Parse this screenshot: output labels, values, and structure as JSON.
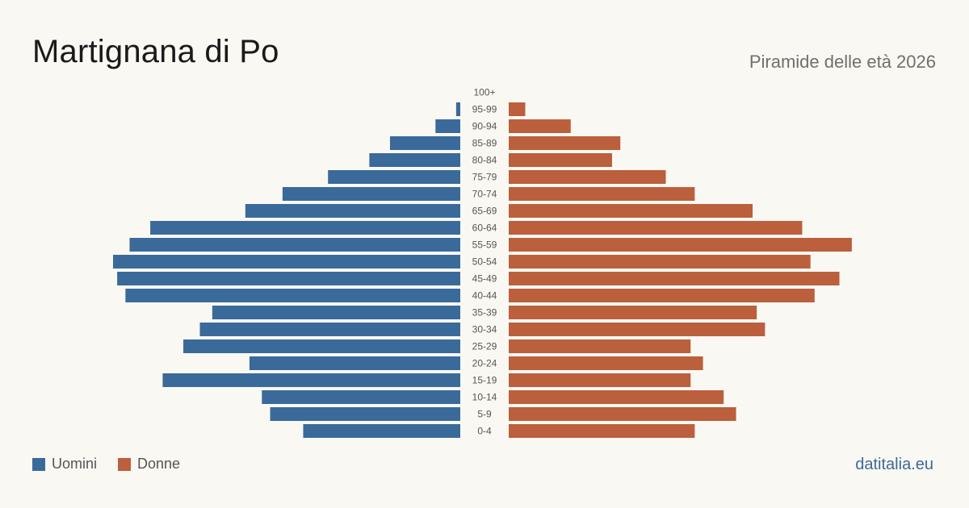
{
  "header": {
    "title": "Martignana di Po",
    "subtitle": "Piramide delle età 2026"
  },
  "legend": {
    "men_label": "Uomini",
    "women_label": "Donne"
  },
  "footer": {
    "brand": "datitalia.eu"
  },
  "colors": {
    "men": "#3a6a9a",
    "women": "#bb5f3d"
  },
  "chart_data": {
    "type": "bar",
    "orientation": "horizontal-pyramid",
    "categories": [
      "100+",
      "95-99",
      "90-94",
      "85-89",
      "80-84",
      "75-79",
      "70-74",
      "65-69",
      "60-64",
      "55-59",
      "50-54",
      "45-49",
      "40-44",
      "35-39",
      "30-34",
      "25-29",
      "20-24",
      "15-19",
      "10-14",
      "5-9",
      "0-4"
    ],
    "series": [
      {
        "name": "Uomini",
        "values": [
          0,
          1,
          6,
          17,
          22,
          32,
          43,
          52,
          75,
          80,
          84,
          83,
          81,
          60,
          63,
          67,
          51,
          72,
          48,
          46,
          38
        ]
      },
      {
        "name": "Donne",
        "values": [
          0,
          4,
          15,
          27,
          25,
          38,
          45,
          59,
          71,
          83,
          73,
          80,
          74,
          60,
          62,
          44,
          47,
          44,
          52,
          55,
          45
        ]
      }
    ],
    "xlim": [
      0,
      84
    ],
    "legend_position": "bottom-left"
  }
}
